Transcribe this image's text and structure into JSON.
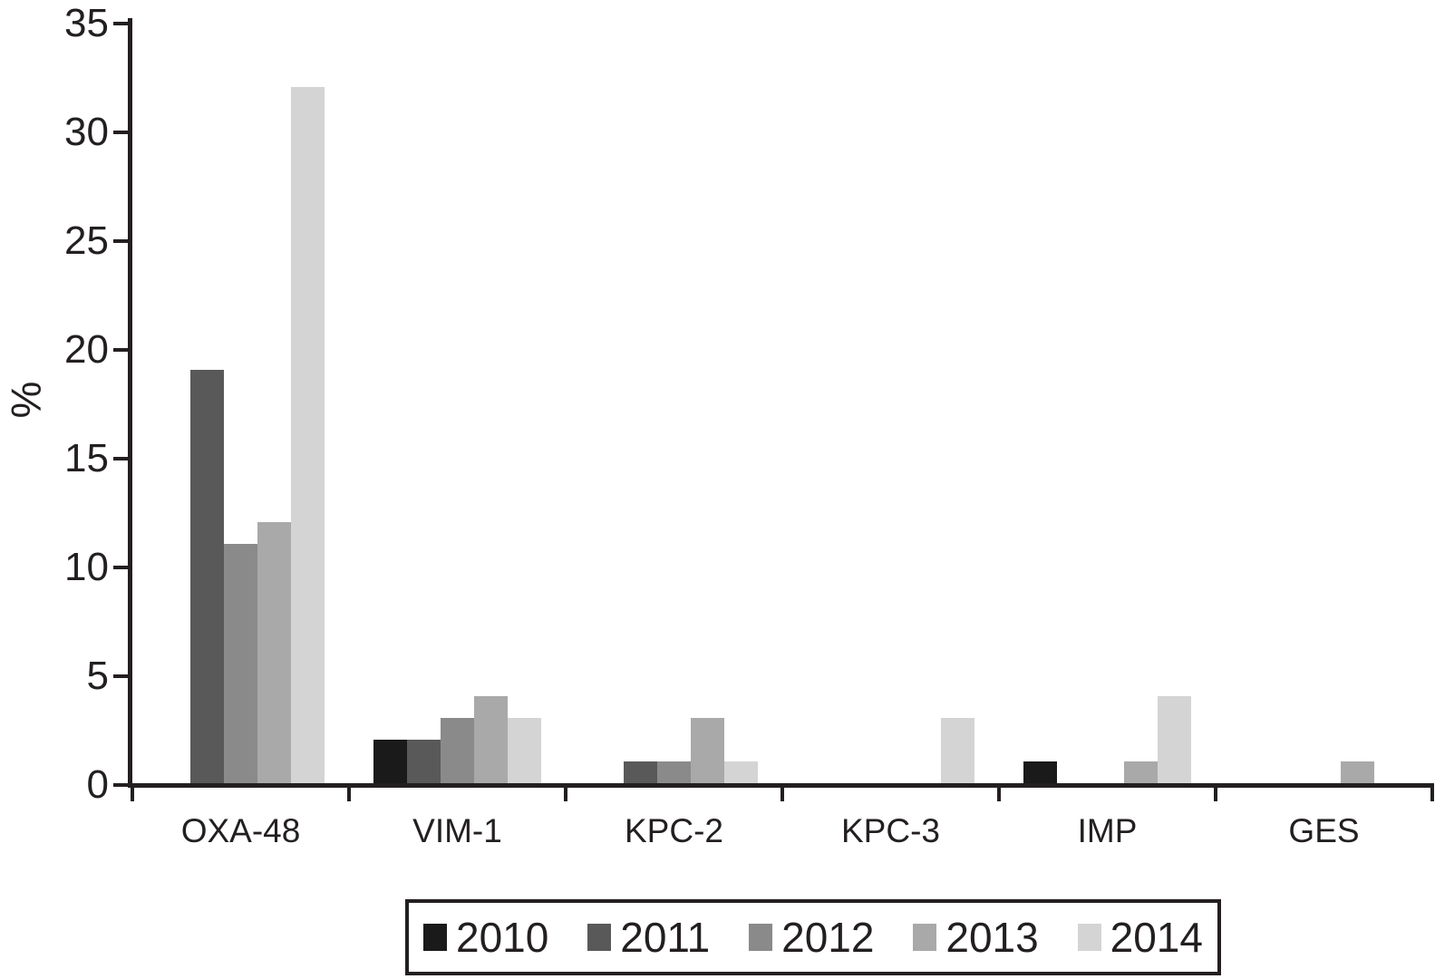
{
  "figure": {
    "background": "#ffffff",
    "axis_color": "#231f20",
    "text_color": "#231f20"
  },
  "chart_data": {
    "type": "bar",
    "title": "",
    "xlabel": "",
    "ylabel": "%",
    "ylim": [
      0,
      35
    ],
    "yticks": [
      0,
      5,
      10,
      15,
      20,
      25,
      30,
      35
    ],
    "grid": false,
    "legend_position": "bottom",
    "categories": [
      "OXA-48",
      "VIM-1",
      "KPC-2",
      "KPC-3",
      "IMP",
      "GES"
    ],
    "series": [
      {
        "name": "2010",
        "color": "#1a1a1a",
        "values": [
          0,
          2,
          0,
          0,
          1,
          0
        ]
      },
      {
        "name": "2011",
        "color": "#595959",
        "values": [
          19,
          2,
          1,
          0,
          0,
          0
        ]
      },
      {
        "name": "2012",
        "color": "#8a8a8a",
        "values": [
          11,
          3,
          1,
          0,
          0,
          0
        ]
      },
      {
        "name": "2013",
        "color": "#a9a9a9",
        "values": [
          12,
          4,
          3,
          0,
          1,
          1
        ]
      },
      {
        "name": "2014",
        "color": "#d4d4d4",
        "values": [
          32,
          3,
          1,
          3,
          4,
          0
        ]
      }
    ]
  }
}
